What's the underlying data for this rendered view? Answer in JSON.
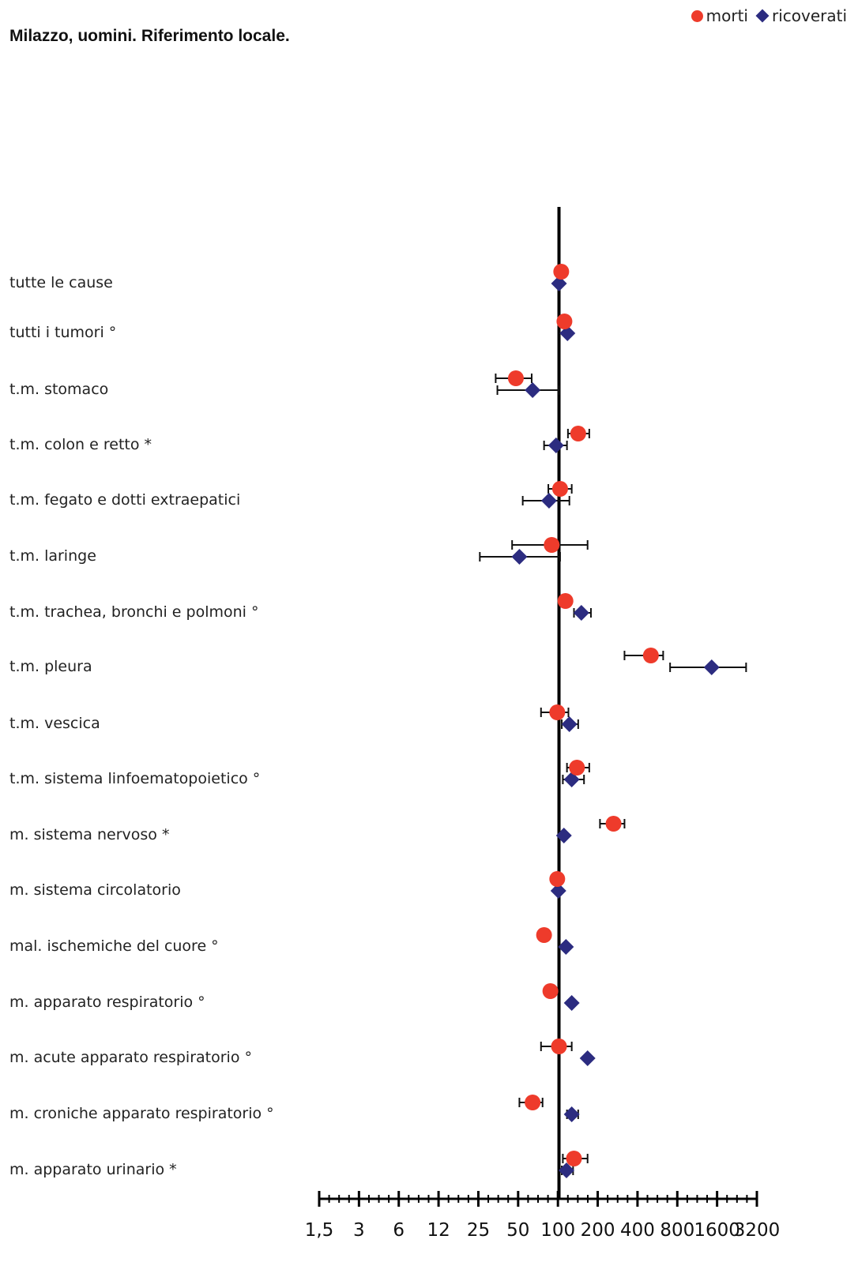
{
  "chart_data": {
    "type": "scatter",
    "title": "Milazzo, uomini. Riferimento locale.",
    "xscale": "log2",
    "reference_value": 100,
    "xlim": [
      1.5,
      3200
    ],
    "x_ticks": [
      "1,5",
      "3",
      "6",
      "12",
      "25",
      "50",
      "100",
      "200",
      "400",
      "800",
      "1600",
      "3200"
    ],
    "legend": {
      "position": "top-right"
    },
    "colors": {
      "morti": "#ee3b2b",
      "ricoverati": "#2c2c80"
    },
    "categories": [
      "tutte le cause",
      "tutti i tumori   °",
      "t.m. stomaco",
      "t.m. colon e retto   *",
      "t.m. fegato e dotti  extraepatici",
      "t.m. laringe",
      "t.m. trachea, bronchi e polmoni    °",
      "t.m. pleura",
      "t.m. vescica",
      "t.m. sistema linfoematopoietico    °",
      "m. sistema nervoso   *",
      "m. sistema circolatorio",
      "mal. ischemiche del cuore    °",
      "m. apparato respiratorio    °",
      "m. acute apparato respiratorio    °",
      "m. croniche apparato respiratorio    °",
      "m. apparato urinario   *"
    ],
    "series": [
      {
        "name": "morti",
        "marker": "circle",
        "values": [
          104,
          110,
          47,
          140,
          102,
          88,
          112,
          500,
          97,
          137,
          260,
          97,
          77,
          86,
          100,
          63,
          130
        ],
        "ci_low": [
          null,
          null,
          33,
          117,
          83,
          44,
          null,
          315,
          73,
          115,
          205,
          null,
          null,
          null,
          73,
          50,
          107
        ],
        "ci_high": [
          null,
          null,
          62,
          170,
          125,
          165,
          null,
          620,
          118,
          170,
          315,
          null,
          null,
          null,
          125,
          75,
          165
        ]
      },
      {
        "name": "ricoverati",
        "marker": "diamond",
        "values": [
          100,
          116,
          63,
          95,
          84,
          50,
          148,
          1450,
          120,
          125,
          109,
          99,
          113,
          125,
          165,
          125,
          114
        ],
        "ci_low": [
          null,
          null,
          34,
          77,
          53,
          25,
          130,
          700,
          105,
          107,
          null,
          null,
          null,
          null,
          null,
          115,
          105
        ],
        "ci_high": [
          null,
          null,
          100,
          115,
          120,
          102,
          175,
          2650,
          140,
          155,
          null,
          null,
          null,
          null,
          null,
          140,
          128
        ]
      }
    ]
  }
}
